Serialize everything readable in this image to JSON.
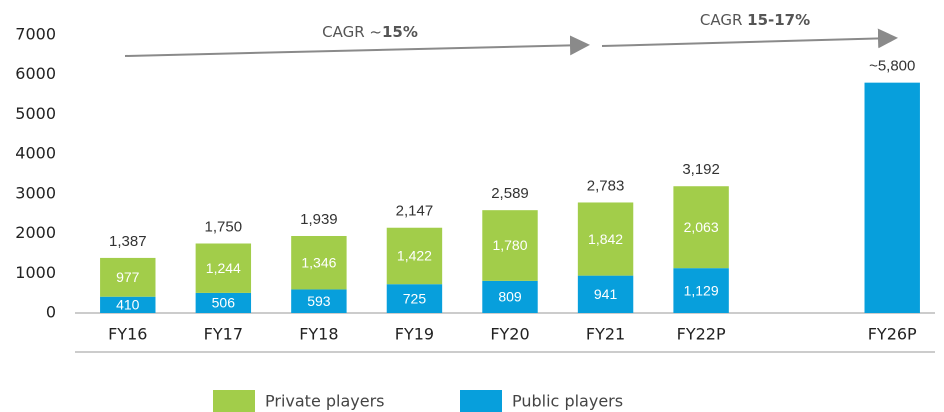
{
  "chart_data": {
    "type": "stacked_bar",
    "categories": [
      "FY16",
      "FY17",
      "FY18",
      "FY19",
      "FY20",
      "FY21",
      "FY22P",
      null,
      "FY26P"
    ],
    "series": [
      {
        "name": "Private players",
        "color": "#a2cd4a",
        "values": [
          977,
          1244,
          1346,
          1422,
          1780,
          1842,
          2063,
          null,
          null
        ],
        "value_labels": [
          "977",
          "1,244",
          "1,346",
          "1,422",
          "1,780",
          "1,842",
          "2,063",
          null,
          null
        ]
      },
      {
        "name": "Public players",
        "color": "#079fdc",
        "values": [
          410,
          506,
          593,
          725,
          809,
          941,
          1129,
          null,
          5800
        ],
        "value_labels": [
          "410",
          "506",
          "593",
          "725",
          "809",
          "941",
          "1,129",
          null,
          null
        ]
      }
    ],
    "totals": {
      "values": [
        1387,
        1750,
        1939,
        2147,
        2589,
        2783,
        3192,
        null,
        5800
      ],
      "labels": [
        "1,387",
        "1,750",
        "1,939",
        "2,147",
        "2,589",
        "2,783",
        "3,192",
        null,
        "~5,800"
      ]
    },
    "annotations": [
      {
        "text": "CAGR ~",
        "bold": "15%"
      },
      {
        "text": "CAGR ",
        "bold": "15-17%"
      }
    ],
    "ylim": [
      0,
      7000
    ],
    "yticks": [
      0,
      1000,
      2000,
      3000,
      4000,
      5000,
      6000,
      7000
    ]
  }
}
